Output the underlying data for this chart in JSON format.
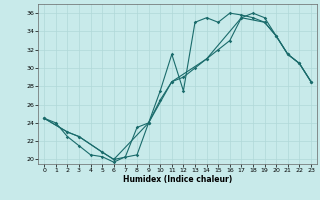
{
  "xlabel": "Humidex (Indice chaleur)",
  "bg_color": "#c8eaea",
  "grid_color": "#b0d8d8",
  "line_color": "#1a6b6b",
  "xlim": [
    -0.5,
    23.5
  ],
  "ylim": [
    19.5,
    37.0
  ],
  "xticks": [
    0,
    1,
    2,
    3,
    4,
    5,
    6,
    7,
    8,
    9,
    10,
    11,
    12,
    13,
    14,
    15,
    16,
    17,
    18,
    19,
    20,
    21,
    22,
    23
  ],
  "yticks": [
    20,
    22,
    24,
    26,
    28,
    30,
    32,
    34,
    36
  ],
  "line1_x": [
    0,
    1,
    2,
    3,
    4,
    5,
    6,
    7,
    8,
    9,
    10,
    11,
    12,
    13,
    14,
    15,
    16,
    17,
    18,
    19,
    20,
    21,
    22,
    23
  ],
  "line1_y": [
    24.5,
    24.0,
    22.5,
    21.5,
    20.5,
    20.3,
    19.7,
    20.3,
    23.5,
    24.0,
    27.5,
    31.5,
    27.5,
    35.0,
    35.5,
    35.0,
    36.0,
    35.8,
    35.5,
    35.0,
    33.5,
    31.5,
    30.5,
    28.5
  ],
  "line2_x": [
    0,
    2,
    3,
    5,
    6,
    8,
    9,
    10,
    11,
    12,
    13,
    14,
    15,
    16,
    17,
    18,
    19,
    20,
    21,
    22,
    23
  ],
  "line2_y": [
    24.5,
    23.0,
    22.5,
    20.8,
    20.0,
    20.5,
    24.0,
    26.5,
    28.5,
    29.0,
    30.0,
    31.0,
    32.0,
    33.0,
    35.5,
    36.0,
    35.5,
    33.5,
    31.5,
    30.5,
    28.5
  ],
  "line3_x": [
    0,
    2,
    3,
    5,
    6,
    9,
    11,
    14,
    17,
    19,
    20,
    21,
    22,
    23
  ],
  "line3_y": [
    24.5,
    23.0,
    22.5,
    20.8,
    20.0,
    24.0,
    28.5,
    31.0,
    35.5,
    35.0,
    33.5,
    31.5,
    30.5,
    28.5
  ]
}
